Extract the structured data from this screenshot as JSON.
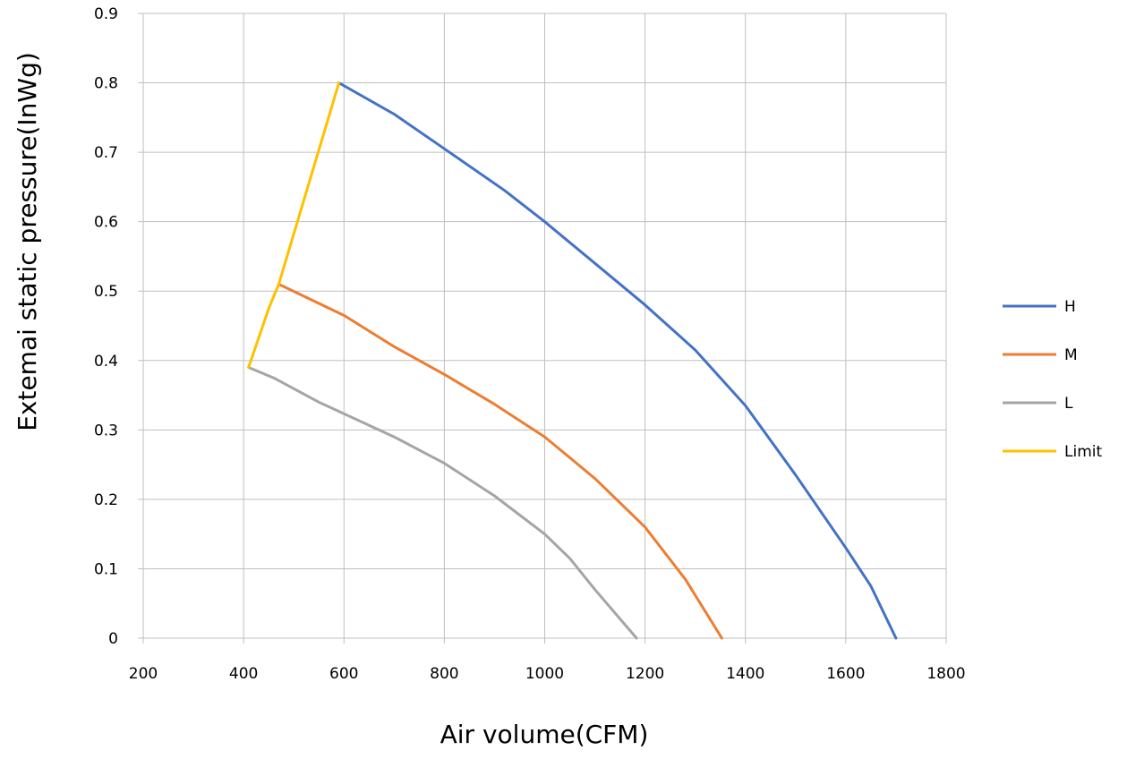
{
  "chart_data": {
    "type": "line",
    "title": "",
    "xlabel": "Air volume(CFM)",
    "ylabel": "Extemai static pressure(InWg)",
    "xlim": [
      200,
      1800
    ],
    "ylim": [
      0,
      0.9
    ],
    "x_ticks": [
      "200",
      "400",
      "600",
      "800",
      "1000",
      "1200",
      "1400",
      "1600",
      "1800"
    ],
    "y_ticks": [
      "0",
      "0.1",
      "0.2",
      "0.3",
      "0.4",
      "0.5",
      "0.6",
      "0.7",
      "0.8",
      "0.9"
    ],
    "grid": true,
    "legend_position": "right",
    "series": [
      {
        "name": "H",
        "color": "#4472c4",
        "points": [
          [
            590,
            0.8
          ],
          [
            700,
            0.755
          ],
          [
            800,
            0.705
          ],
          [
            920,
            0.645
          ],
          [
            1000,
            0.6
          ],
          [
            1100,
            0.54
          ],
          [
            1200,
            0.48
          ],
          [
            1300,
            0.415
          ],
          [
            1400,
            0.335
          ],
          [
            1500,
            0.235
          ],
          [
            1600,
            0.13
          ],
          [
            1650,
            0.075
          ],
          [
            1700,
            0
          ]
        ]
      },
      {
        "name": "M",
        "color": "#ed7d31",
        "points": [
          [
            470,
            0.51
          ],
          [
            600,
            0.465
          ],
          [
            700,
            0.42
          ],
          [
            800,
            0.38
          ],
          [
            900,
            0.337
          ],
          [
            1000,
            0.29
          ],
          [
            1100,
            0.23
          ],
          [
            1200,
            0.16
          ],
          [
            1280,
            0.085
          ],
          [
            1353,
            0
          ]
        ]
      },
      {
        "name": "L",
        "color": "#a5a5a5",
        "points": [
          [
            410,
            0.39
          ],
          [
            460,
            0.375
          ],
          [
            550,
            0.34
          ],
          [
            700,
            0.29
          ],
          [
            800,
            0.252
          ],
          [
            900,
            0.205
          ],
          [
            1000,
            0.15
          ],
          [
            1050,
            0.115
          ],
          [
            1100,
            0.07
          ],
          [
            1183,
            0
          ]
        ]
      },
      {
        "name": "Limit",
        "color": "#ffc000",
        "points": [
          [
            410,
            0.39
          ],
          [
            450,
            0.475
          ],
          [
            470,
            0.51
          ],
          [
            590,
            0.8
          ]
        ]
      }
    ]
  }
}
